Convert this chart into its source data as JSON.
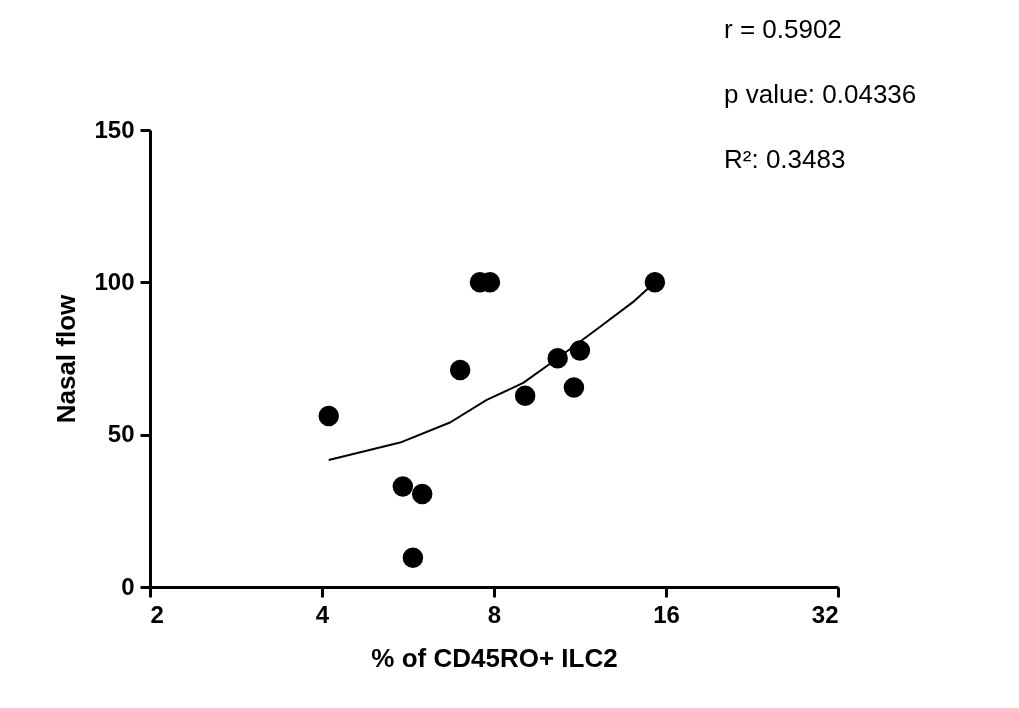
{
  "chart_data": {
    "type": "scatter",
    "xlabel": "% of CD45RO+  ILC2",
    "ylabel": "Nasal flow",
    "annotations": [
      "r = 0.5902",
      "p value: 0.04336",
      "R²: 0.3483"
    ],
    "log": "x",
    "xlim": [
      2,
      32
    ],
    "xticks": [
      2,
      4,
      8,
      16,
      32
    ],
    "ylim": [
      0,
      150
    ],
    "yticks": [
      0,
      50,
      100,
      150
    ],
    "grid": false,
    "marker": "circle",
    "series": [
      {
        "color": "#000000",
        "x": [
          4.11,
          5.54,
          5.77,
          5.99,
          6.98,
          7.56,
          7.87,
          9.07,
          10.34,
          11.04,
          11.31,
          15.3
        ],
        "values": [
          56.1,
          33.0,
          9.6,
          30.5,
          71.2,
          100,
          100,
          62.8,
          75.1,
          65.5,
          77.6,
          100
        ]
      },
      {
        "type": "line",
        "color": "#000000",
        "line_style": "solid",
        "marker": "none",
        "x": [
          4.11,
          5.48,
          6.7,
          7.77,
          9.0,
          10.34,
          12.27,
          14.0,
          15.3
        ],
        "values": [
          41.7,
          47.4,
          54.0,
          61.4,
          67.0,
          75.1,
          85.4,
          93.5,
          100
        ]
      }
    ]
  }
}
